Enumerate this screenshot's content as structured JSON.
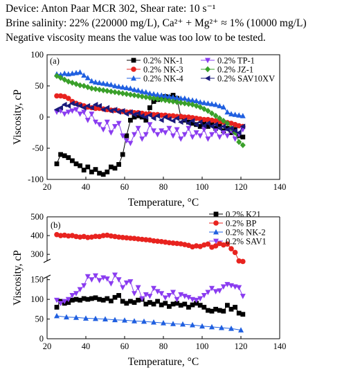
{
  "header": {
    "line1": "Device: Anton Paar MCR 302, Shear rate: 10 s⁻¹",
    "line2": "Brine salinity: 22% (220000 mg/L), Ca²⁺ + Mg²⁺ ≈ 1% (10000 mg/L)",
    "line3": "Negative viscosity means the value was too low to be tested."
  },
  "chart_data": [
    {
      "type": "line",
      "panel_label": "(a)",
      "xlabel": "Temperature, °C",
      "ylabel": "Viscosity, cP",
      "xlim": [
        20,
        140
      ],
      "ylim": [
        -100,
        100
      ],
      "xticks": [
        20,
        40,
        60,
        80,
        100,
        120,
        140
      ],
      "yticks": [
        -100,
        -50,
        0,
        50,
        100
      ],
      "legend_position": "top",
      "series": [
        {
          "name": "0.2% NK-1",
          "color": "#000000",
          "marker": "square",
          "x": [
            25,
            27,
            29,
            31,
            33,
            35,
            37,
            39,
            41,
            43,
            45,
            47,
            49,
            51,
            53,
            55,
            57,
            59,
            61,
            63,
            65,
            67,
            69,
            71,
            73,
            75,
            77,
            79,
            81,
            83,
            85,
            87,
            89,
            91,
            93,
            95,
            97,
            99,
            101,
            103,
            105,
            107,
            109,
            111,
            113,
            115,
            117,
            119,
            121
          ],
          "y": [
            -75,
            -60,
            -62,
            -65,
            -70,
            -75,
            -78,
            -85,
            -80,
            -88,
            -84,
            -90,
            -92,
            -88,
            -80,
            -82,
            -76,
            -60,
            -30,
            -5,
            0,
            2,
            0,
            -5,
            15,
            25,
            28,
            30,
            33,
            32,
            35,
            30,
            0,
            -5,
            -8,
            -10,
            -12,
            -15,
            -10,
            -15,
            -12,
            -18,
            -12,
            -22,
            -18,
            -25,
            -20,
            -30,
            -32
          ]
        },
        {
          "name": "0.2% NK-3",
          "color": "#e8231f",
          "marker": "circle",
          "x": [
            25,
            27,
            29,
            31,
            33,
            35,
            37,
            39,
            41,
            43,
            45,
            47,
            49,
            51,
            53,
            55,
            57,
            59,
            61,
            63,
            65,
            67,
            69,
            71,
            73,
            75,
            77,
            79,
            81,
            83,
            85,
            87,
            89,
            91,
            93,
            95,
            97,
            99,
            101,
            103,
            105,
            107,
            109,
            111,
            113,
            115,
            117,
            119,
            121
          ],
          "y": [
            34,
            34,
            33,
            30,
            25,
            22,
            20,
            18,
            16,
            15,
            14,
            14,
            13,
            12,
            11,
            11,
            10,
            9,
            8,
            8,
            7,
            7,
            6,
            5,
            5,
            4,
            4,
            3,
            3,
            2,
            2,
            1,
            1,
            0,
            0,
            -1,
            -2,
            -3,
            -4,
            -4,
            -5,
            -6,
            -7,
            -8,
            -9,
            -10,
            -12,
            -14,
            -15
          ]
        },
        {
          "name": "0.2% NK-4",
          "color": "#1f5fe0",
          "marker": "triangle",
          "x": [
            25,
            27,
            29,
            31,
            33,
            35,
            37,
            39,
            41,
            43,
            45,
            47,
            49,
            51,
            53,
            55,
            57,
            59,
            61,
            63,
            65,
            67,
            69,
            71,
            73,
            75,
            77,
            79,
            81,
            83,
            85,
            87,
            89,
            91,
            93,
            95,
            97,
            99,
            101,
            103,
            105,
            107,
            109,
            111,
            113,
            115,
            117,
            119,
            121
          ],
          "y": [
            69,
            68,
            70,
            69,
            70,
            71,
            72,
            67,
            63,
            58,
            56,
            55,
            54,
            53,
            52,
            50,
            49,
            48,
            47,
            46,
            44,
            43,
            41,
            40,
            38,
            37,
            36,
            35,
            34,
            33,
            32,
            31,
            30,
            30,
            28,
            27,
            26,
            24,
            23,
            22,
            21,
            20,
            18,
            16,
            8,
            5,
            4,
            3,
            2
          ]
        },
        {
          "name": "0.2% TP-1",
          "color": "#8a3cf0",
          "marker": "triangle-down",
          "x": [
            25,
            27,
            29,
            31,
            33,
            35,
            37,
            39,
            41,
            43,
            45,
            47,
            49,
            51,
            53,
            55,
            57,
            59,
            61,
            63,
            65,
            67,
            69,
            71,
            73,
            75,
            77,
            79,
            81,
            83,
            85,
            87,
            89,
            91,
            93,
            95,
            97,
            99,
            101,
            103,
            105,
            107,
            109,
            111,
            113,
            115,
            117,
            119,
            121
          ],
          "y": [
            8,
            10,
            5,
            8,
            10,
            12,
            5,
            8,
            -5,
            5,
            -8,
            -12,
            -20,
            -8,
            -25,
            -15,
            -10,
            -30,
            -38,
            -42,
            -28,
            -18,
            -35,
            -28,
            -12,
            -22,
            -28,
            -22,
            -25,
            -18,
            -30,
            -20,
            -35,
            -28,
            -18,
            -32,
            -25,
            -30,
            -20,
            -35,
            -28,
            -22,
            -32,
            -25,
            -30,
            -22,
            -35,
            -28,
            -20
          ]
        },
        {
          "name": "0.2% JZ-1",
          "color": "#3aa02a",
          "marker": "diamond",
          "x": [
            25,
            27,
            29,
            31,
            33,
            35,
            37,
            39,
            41,
            43,
            45,
            47,
            49,
            51,
            53,
            55,
            57,
            59,
            61,
            63,
            65,
            67,
            69,
            71,
            73,
            75,
            77,
            79,
            81,
            83,
            85,
            87,
            89,
            91,
            93,
            95,
            97,
            99,
            101,
            103,
            105,
            107,
            109,
            111,
            113,
            115,
            117,
            119,
            121
          ],
          "y": [
            66,
            63,
            60,
            57,
            55,
            53,
            51,
            50,
            48,
            46,
            45,
            44,
            43,
            42,
            41,
            40,
            39,
            38,
            37,
            36,
            35,
            34,
            33,
            32,
            31,
            30,
            29,
            28,
            27,
            26,
            25,
            24,
            23,
            22,
            21,
            20,
            18,
            16,
            13,
            10,
            6,
            2,
            -2,
            -6,
            -10,
            -18,
            -25,
            -40,
            -45
          ]
        },
        {
          "name": "0.2% SAV10XV",
          "color": "#1a1a7a",
          "marker": "triangle-left",
          "x": [
            25,
            27,
            29,
            31,
            33,
            35,
            37,
            39,
            41,
            43,
            45,
            47,
            49,
            51,
            53,
            55,
            57,
            59,
            61,
            63,
            65,
            67,
            69,
            71,
            73,
            75,
            77,
            79,
            81,
            83,
            85,
            87,
            89,
            91,
            93,
            95,
            97,
            99,
            101,
            103,
            105,
            107,
            109,
            111,
            113,
            115,
            117,
            119,
            121
          ],
          "y": [
            12,
            15,
            20,
            18,
            22,
            20,
            18,
            15,
            18,
            15,
            20,
            18,
            12,
            15,
            10,
            12,
            8,
            10,
            5,
            8,
            4,
            6,
            2,
            0,
            3,
            -2,
            2,
            -5,
            0,
            -3,
            -6,
            -2,
            -8,
            -5,
            -10,
            -6,
            -12,
            -8,
            -14,
            -10,
            -15,
            -12,
            -18,
            -15,
            -20,
            -18,
            -22,
            -25,
            -15
          ]
        }
      ]
    },
    {
      "type": "line",
      "panel_label": "(b)",
      "xlabel": "Temperature, °C",
      "ylabel": "Viscosity, cP",
      "xlim": [
        20,
        140
      ],
      "ylim_lower": [
        0,
        160
      ],
      "ylim_upper": [
        260,
        500
      ],
      "axis_break": true,
      "xticks": [
        20,
        40,
        60,
        80,
        100,
        120,
        140
      ],
      "yticks_lower": [
        0,
        50,
        100,
        150
      ],
      "yticks_upper": [
        300,
        400,
        500
      ],
      "legend_position": "top-right",
      "series": [
        {
          "name": "0.2% K21",
          "color": "#000000",
          "marker": "square",
          "x": [
            25,
            27,
            29,
            31,
            33,
            35,
            37,
            39,
            41,
            43,
            45,
            47,
            49,
            51,
            53,
            55,
            57,
            59,
            61,
            63,
            65,
            67,
            69,
            71,
            73,
            75,
            77,
            79,
            81,
            83,
            85,
            87,
            89,
            91,
            93,
            95,
            97,
            99,
            101,
            103,
            105,
            107,
            109,
            111,
            113,
            115,
            117,
            119,
            121
          ],
          "y": [
            80,
            95,
            90,
            92,
            98,
            100,
            98,
            102,
            100,
            102,
            104,
            100,
            98,
            102,
            96,
            105,
            110,
            95,
            90,
            95,
            92,
            98,
            100,
            88,
            92,
            88,
            95,
            86,
            90,
            82,
            88,
            90,
            85,
            88,
            80,
            86,
            90,
            85,
            80,
            72,
            70,
            75,
            72,
            70,
            85,
            75,
            80,
            65,
            62
          ]
        },
        {
          "name": "0.2% BP",
          "color": "#e8231f",
          "marker": "circle",
          "x": [
            25,
            27,
            29,
            31,
            33,
            35,
            37,
            39,
            41,
            43,
            45,
            47,
            49,
            51,
            53,
            55,
            57,
            59,
            61,
            63,
            65,
            67,
            69,
            71,
            73,
            75,
            77,
            79,
            81,
            83,
            85,
            87,
            89,
            91,
            93,
            95,
            97,
            99,
            101,
            103,
            105,
            107,
            109,
            111,
            113,
            115,
            117,
            119,
            121
          ],
          "y": [
            405,
            400,
            402,
            398,
            400,
            395,
            392,
            395,
            390,
            392,
            396,
            395,
            400,
            402,
            398,
            395,
            392,
            390,
            388,
            386,
            385,
            382,
            380,
            378,
            376,
            372,
            370,
            368,
            365,
            362,
            360,
            358,
            356,
            352,
            348,
            340,
            345,
            342,
            350,
            355,
            338,
            345,
            358,
            350,
            355,
            330,
            310,
            265,
            262
          ]
        },
        {
          "name": "0.2% NK-2",
          "color": "#1f5fe0",
          "marker": "triangle",
          "x": [
            25,
            30,
            35,
            40,
            45,
            50,
            55,
            60,
            65,
            70,
            75,
            80,
            85,
            90,
            95,
            100,
            105,
            110,
            115,
            120
          ],
          "y": [
            58,
            55,
            54,
            52,
            51,
            50,
            48,
            47,
            45,
            44,
            42,
            40,
            38,
            37,
            35,
            32,
            30,
            28,
            26,
            22
          ]
        },
        {
          "name": "0.2% SAV1",
          "color": "#8a3cf0",
          "marker": "triangle-down",
          "x": [
            25,
            27,
            29,
            31,
            33,
            35,
            37,
            39,
            41,
            43,
            45,
            47,
            49,
            51,
            53,
            55,
            57,
            59,
            61,
            63,
            65,
            67,
            69,
            71,
            73,
            75,
            77,
            79,
            81,
            83,
            85,
            87,
            89,
            91,
            93,
            95,
            97,
            99,
            101,
            103,
            105,
            107,
            109,
            111,
            113,
            115,
            117,
            119,
            121
          ],
          "y": [
            98,
            90,
            95,
            100,
            110,
            115,
            125,
            135,
            158,
            150,
            160,
            148,
            155,
            152,
            140,
            162,
            150,
            130,
            142,
            145,
            115,
            130,
            102,
            112,
            108,
            128,
            120,
            115,
            104,
            110,
            118,
            100,
            112,
            108,
            105,
            100,
            98,
            102,
            110,
            118,
            128,
            120,
            122,
            132,
            138,
            135,
            132,
            130,
            108
          ]
        }
      ]
    }
  ]
}
